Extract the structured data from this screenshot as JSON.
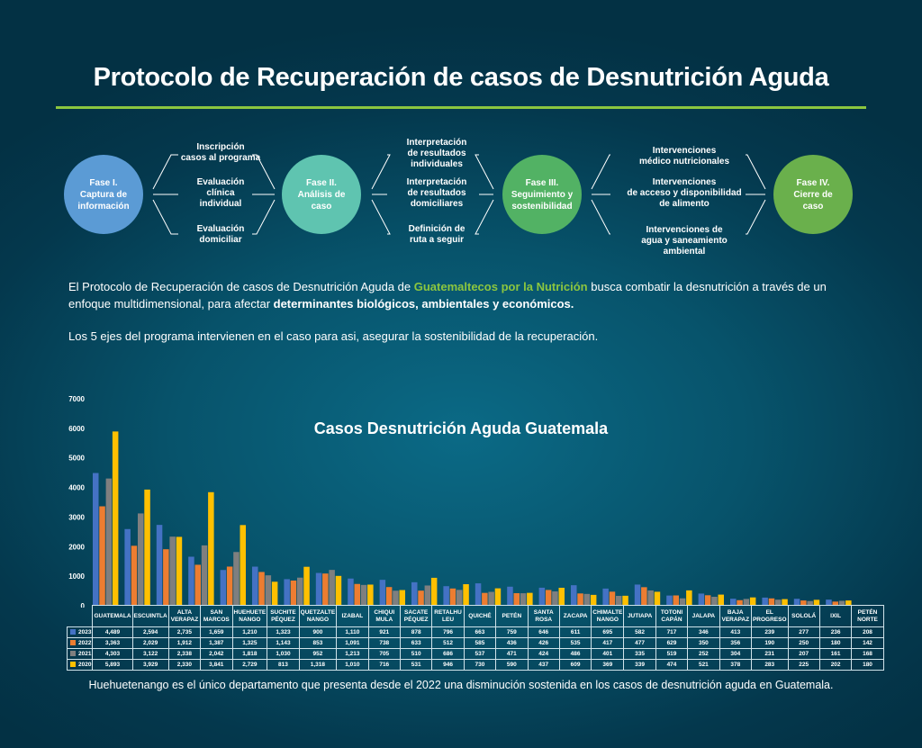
{
  "header": {
    "title": "Protocolo de Recuperación de casos de Desnutrición Aguda"
  },
  "colors": {
    "accent_green": "#8cc63f",
    "phase1": "#5b9bd5",
    "phase2": "#5fc4b0",
    "phase3": "#52b264",
    "phase4": "#6ab04c",
    "series_2023": "#4472c4",
    "series_2022": "#ed7d31",
    "series_2021": "#7f7f7f",
    "series_2020": "#ffc000"
  },
  "flow": {
    "phases": [
      {
        "label": "Fase I.\nCaptura de\ninformación"
      },
      {
        "label": "Fase II.\nAnálisis de\ncaso"
      },
      {
        "label": "Fase III.\nSeguimiento y\nsostenibilidad"
      },
      {
        "label": "Fase IV.\nCierre de\ncaso"
      }
    ],
    "steps": [
      [
        "Inscripción\ncasos al programa",
        "Evaluación\nclínica\nindividual",
        "Evaluación\ndomiciliar"
      ],
      [
        "Interpretación\nde resultados\nindividuales",
        "Interpretación\nde resultados\ndomiciliares",
        "Definición de\nruta a seguir"
      ],
      [
        "Intervenciones\nmédico nutricionales",
        "Intervenciones\nde acceso y disponibilidad\nde alimento",
        "Intervenciones  de\nagua y saneamiento\nambiental"
      ]
    ]
  },
  "intro": {
    "p1_a": "El Protocolo de Recuperación de casos de Desnutrición Aguda de ",
    "p1_highlight": "Guatemaltecos por la Nutrición",
    "p1_b": " busca combatir la desnutrición a través de un enfoque multidimensional, para afectar ",
    "p1_bold": "determinantes biológicos, ambientales y económicos.",
    "p2": "Los 5 ejes del programa intervienen en el caso para asi, asegurar la sostenibilidad de la recuperación."
  },
  "chart_data": {
    "type": "bar",
    "title": "Casos Desnutrición Aguda Guatemala",
    "xlabel": "",
    "ylabel": "",
    "ylim": [
      0,
      7000
    ],
    "yticks": [
      0,
      1000,
      2000,
      3000,
      4000,
      5000,
      6000,
      7000
    ],
    "grid": false,
    "legend": "table-left",
    "categories": [
      "GUATEMALA",
      "ESCUINTLA",
      "ALTA\nVERAPAZ",
      "SAN\nMARCOS",
      "HUEHUETE\nNANGO",
      "SUCHITE\nPÉQUEZ",
      "QUETZALTE\nNANGO",
      "IZABAL",
      "CHIQUI\nMULA",
      "SACATE\nPÉQUEZ",
      "RETALHU\nLEU",
      "QUICHÉ",
      "PETÉN",
      "SANTA\nROSA",
      "ZACAPA",
      "CHIMALTE\nNANGO",
      "JUTIAPA",
      "TOTONI\nCAPÁN",
      "JALAPA",
      "BAJA\nVERAPAZ",
      "EL\nPROGRESO",
      "SOLOLÁ",
      "IXIL",
      "PETÉN\nNORTE"
    ],
    "series": [
      {
        "name": "2023",
        "values": [
          4489,
          2594,
          2735,
          1659,
          1210,
          1323,
          900,
          1110,
          921,
          878,
          796,
          663,
          759,
          646,
          611,
          695,
          582,
          717,
          346,
          413,
          239,
          277,
          236,
          208
        ]
      },
      {
        "name": "2022",
        "values": [
          3363,
          2029,
          1912,
          1387,
          1325,
          1143,
          853,
          1091,
          738,
          633,
          512,
          585,
          436,
          426,
          535,
          417,
          477,
          629,
          350,
          356,
          190,
          250,
          180,
          142
        ]
      },
      {
        "name": "2021",
        "values": [
          4303,
          3122,
          2338,
          2042,
          1818,
          1030,
          952,
          1213,
          705,
          510,
          686,
          537,
          471,
          424,
          486,
          401,
          335,
          519,
          252,
          304,
          231,
          207,
          161,
          168
        ]
      },
      {
        "name": "2020",
        "values": [
          5893,
          3929,
          2330,
          3841,
          2729,
          813,
          1318,
          1010,
          716,
          531,
          946,
          730,
          590,
          437,
          609,
          369,
          339,
          474,
          521,
          378,
          283,
          225,
          202,
          180
        ]
      }
    ]
  },
  "caption": "Huehuetenango es el único departamento que presenta desde el 2022 una disminución sostenida en los casos de desnutrición aguda en Guatemala."
}
